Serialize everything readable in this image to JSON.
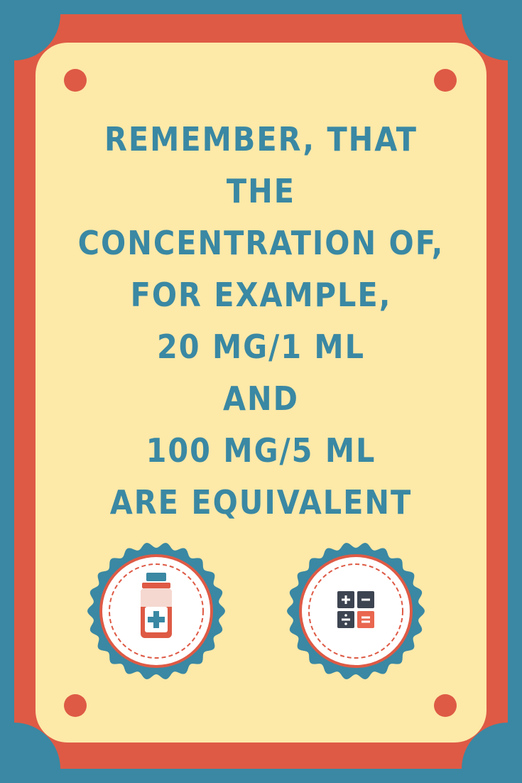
{
  "poster": {
    "headline_lines": [
      "REMEMBER, THAT",
      "THE",
      "CONCENTRATION OF,",
      "FOR EXAMPLE,",
      "20 MG/1 ML",
      "AND",
      "100 MG/5 ML",
      "ARE EQUIVALENT"
    ]
  },
  "icons": {
    "left_badge": "medicine-bottle-icon",
    "right_badge": "calculator-icon",
    "corner_dots": "decorative-dot"
  },
  "colors": {
    "background_blue": "#3a88a3",
    "frame_red": "#de5a45",
    "panel_cream": "#fde9a8",
    "text_blue": "#3a88a3",
    "badge_white": "#ffffff",
    "calculator_dark": "#3d4451",
    "calculator_orange": "#e9664f"
  }
}
